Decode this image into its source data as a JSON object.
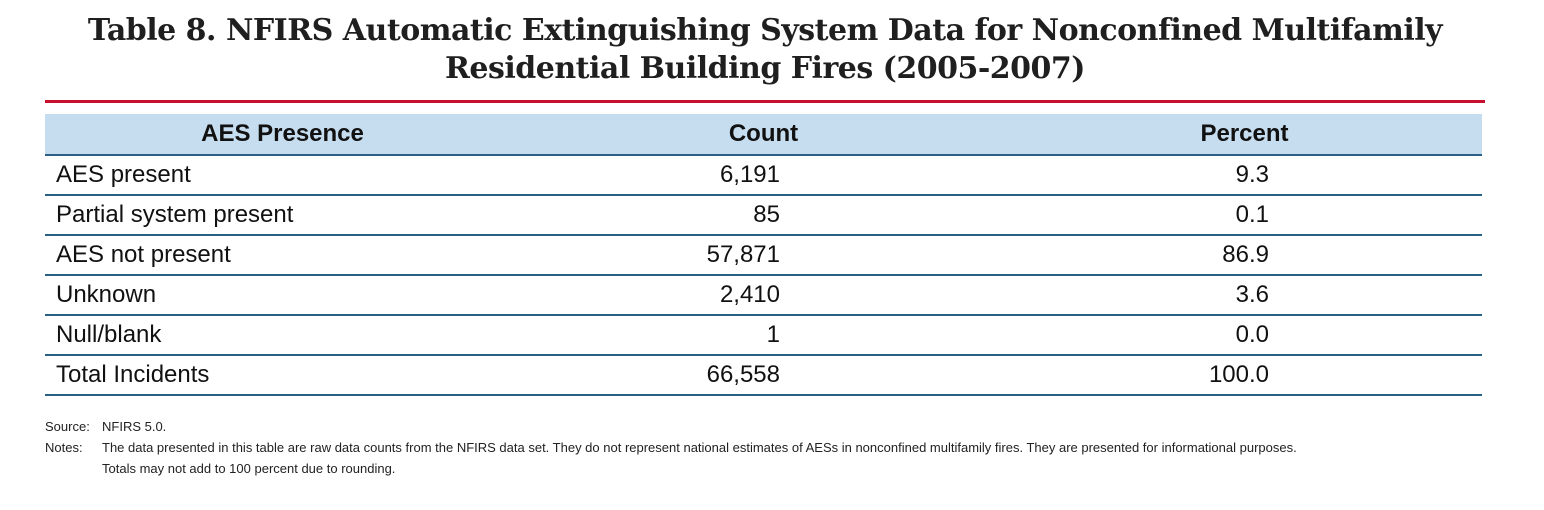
{
  "title": {
    "line1": "Table 8. NFIRS Automatic Extinguishing System Data for Nonconfined Multifamily",
    "line2": "Residential Building Fires (2005-2007)"
  },
  "colors": {
    "title_rule": "#c8102e",
    "header_bg": "#c6ddef",
    "row_rule": "#2a5f86"
  },
  "table": {
    "headers": [
      "AES Presence",
      "Count",
      "Percent"
    ],
    "rows": [
      {
        "label": "AES present",
        "count": "6,191",
        "percent": "9.3"
      },
      {
        "label": "Partial system present",
        "count": "85",
        "percent": "0.1"
      },
      {
        "label": "AES not present",
        "count": "57,871",
        "percent": "86.9"
      },
      {
        "label": "Unknown",
        "count": "2,410",
        "percent": "3.6"
      },
      {
        "label": "Null/blank",
        "count": "1",
        "percent": "0.0"
      },
      {
        "label": "Total Incidents",
        "count": "66,558",
        "percent": "100.0"
      }
    ]
  },
  "footnotes": {
    "source_label": "Source:",
    "source_text": "NFIRS 5.0.",
    "notes_label": "Notes:",
    "notes_line1": "The data presented in this table are raw data counts from the NFIRS data set. They do not represent national estimates of AESs in nonconfined multifamily fires. They are presented for informational purposes.",
    "notes_line2": "Totals may not add to 100 percent due to rounding."
  }
}
